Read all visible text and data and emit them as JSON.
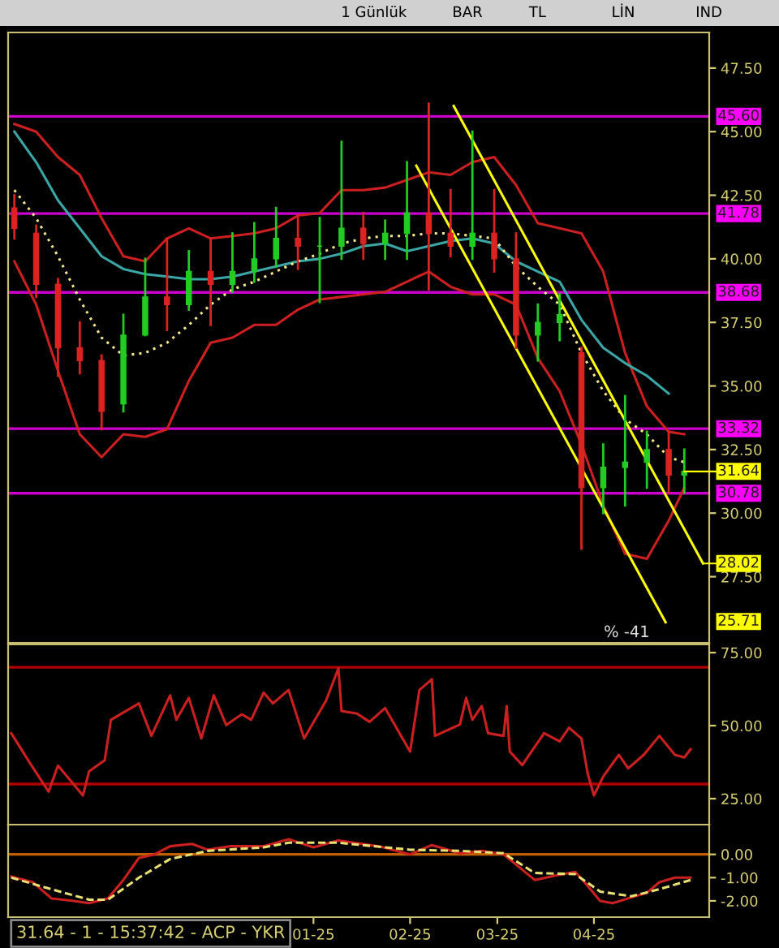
{
  "chart_data": [
    {
      "type": "candlestick",
      "x": [
        "2024-09-27",
        "2024-10-04",
        "2024-10-11",
        "2024-10-18",
        "2024-10-25",
        "2024-11-01",
        "2024-11-08",
        "2024-11-15",
        "2024-11-22",
        "2024-11-29",
        "2024-12-06",
        "2024-12-13",
        "2024-12-20",
        "2024-12-27",
        "2025-01-03",
        "2025-01-10",
        "2025-01-17",
        "2025-01-24",
        "2025-01-31",
        "2025-02-07",
        "2025-02-14",
        "2025-02-21",
        "2025-02-28",
        "2025-03-07",
        "2025-03-14",
        "2025-03-21",
        "2025-03-28",
        "2025-04-04",
        "2025-04-11",
        "2025-04-18",
        "2025-04-25",
        "2025-04-30"
      ],
      "ohlc": [
        [
          42,
          42.5,
          40.8,
          41.2
        ],
        [
          41,
          41.3,
          38.5,
          39
        ],
        [
          39,
          39.2,
          35.4,
          36.5
        ],
        [
          36.5,
          37.5,
          35.5,
          36
        ],
        [
          36,
          36.2,
          33.3,
          34
        ],
        [
          34.3,
          37.8,
          34,
          37
        ],
        [
          37,
          40,
          37,
          38.5
        ],
        [
          38.5,
          40.8,
          37.2,
          38.2
        ],
        [
          38.2,
          40.3,
          38,
          39.5
        ],
        [
          39.5,
          40.8,
          37.4,
          39
        ],
        [
          39,
          41,
          38.7,
          39.5
        ],
        [
          39.5,
          41.4,
          39.1,
          40
        ],
        [
          40,
          42,
          39.7,
          40.8
        ],
        [
          40.8,
          41.7,
          39.6,
          40.5
        ],
        [
          40.5,
          41.6,
          38.3,
          40.5
        ],
        [
          40.5,
          44.6,
          40,
          41.2
        ],
        [
          41.2,
          41.8,
          40,
          40.6
        ],
        [
          40.6,
          41.5,
          40,
          41
        ],
        [
          41,
          43.8,
          40,
          41.8
        ],
        [
          41.8,
          46.1,
          38.8,
          41
        ],
        [
          41,
          42.7,
          40.1,
          40.5
        ],
        [
          40.5,
          45,
          40,
          41
        ],
        [
          41,
          42.7,
          39.5,
          40
        ],
        [
          40,
          41,
          36.5,
          37
        ],
        [
          37,
          38.2,
          36,
          37.5
        ],
        [
          37.5,
          38.6,
          36.8,
          37.8
        ],
        [
          36.3,
          36.5,
          28.6,
          31
        ],
        [
          31,
          32.7,
          30,
          31.8
        ],
        [
          31.8,
          34.6,
          30.3,
          32
        ],
        [
          32,
          33.2,
          31,
          32.5
        ],
        [
          32.5,
          33.2,
          30.8,
          31.5
        ],
        [
          31.5,
          32.5,
          30.8,
          31.64
        ]
      ],
      "series": [
        {
          "type": "line",
          "color": "#cc2020",
          "x": [
            "2024-09-27",
            "2024-10-04",
            "2024-10-11",
            "2024-10-18",
            "2024-10-25",
            "2024-11-01",
            "2024-11-08",
            "2024-11-15",
            "2024-11-22",
            "2024-11-29",
            "2024-12-06",
            "2024-12-13",
            "2024-12-20",
            "2024-12-27",
            "2025-01-03",
            "2025-01-10",
            "2025-01-17",
            "2025-01-24",
            "2025-01-31",
            "2025-02-07",
            "2025-02-14",
            "2025-02-21",
            "2025-02-28",
            "2025-03-07",
            "2025-03-14",
            "2025-03-21",
            "2025-03-28",
            "2025-04-04",
            "2025-04-11",
            "2025-04-18",
            "2025-04-25",
            "2025-04-30"
          ],
          "values": [
            45.3,
            45,
            44,
            43.3,
            41.6,
            40.1,
            39.9,
            40.8,
            41.2,
            40.8,
            40.9,
            41,
            41.2,
            41.7,
            41.8,
            42.7,
            42.7,
            42.8,
            43.1,
            43.4,
            43.3,
            43.8,
            44,
            42.9,
            41.4,
            41.2,
            41,
            39.5,
            36.3,
            34.2,
            33.2,
            33.1
          ]
        },
        {
          "type": "line",
          "color": "#cc2020",
          "x": [
            "2024-09-27",
            "2024-10-04",
            "2024-10-11",
            "2024-10-18",
            "2024-10-25",
            "2024-11-01",
            "2024-11-08",
            "2024-11-15",
            "2024-11-22",
            "2024-11-29",
            "2024-12-06",
            "2024-12-13",
            "2024-12-20",
            "2024-12-27",
            "2025-01-03",
            "2025-01-10",
            "2025-01-17",
            "2025-01-24",
            "2025-01-31",
            "2025-02-07",
            "2025-02-14",
            "2025-02-21",
            "2025-02-28",
            "2025-03-07",
            "2025-03-14",
            "2025-03-21",
            "2025-03-28",
            "2025-04-04",
            "2025-04-11",
            "2025-04-18",
            "2025-04-25",
            "2025-04-30"
          ],
          "values": [
            39.9,
            38.2,
            35.6,
            33.1,
            32.2,
            33.1,
            33,
            33.3,
            35.2,
            36.7,
            36.9,
            37.4,
            37.4,
            38,
            38.4,
            38.5,
            38.6,
            38.7,
            39.1,
            39.5,
            38.9,
            38.6,
            38.6,
            38.2,
            36.1,
            34.8,
            32.7,
            30.3,
            28.4,
            28.2,
            29.7,
            31
          ]
        },
        {
          "type": "line",
          "color": "#3aa6a6",
          "x": [
            "2024-09-27",
            "2024-10-04",
            "2024-10-11",
            "2024-10-18",
            "2024-10-25",
            "2024-11-01",
            "2024-11-08",
            "2024-11-15",
            "2024-11-22",
            "2024-11-29",
            "2024-12-06",
            "2024-12-13",
            "2024-12-20",
            "2024-12-27",
            "2025-01-03",
            "2025-01-10",
            "2025-01-17",
            "2025-01-24",
            "2025-01-31",
            "2025-02-07",
            "2025-02-14",
            "2025-02-21",
            "2025-02-28",
            "2025-03-07",
            "2025-03-14",
            "2025-03-21",
            "2025-03-28",
            "2025-04-04",
            "2025-04-11",
            "2025-04-18",
            "2025-04-25"
          ],
          "values": [
            45,
            43.8,
            42.3,
            41.2,
            40.1,
            39.6,
            39.4,
            39.3,
            39.2,
            39.2,
            39.3,
            39.5,
            39.7,
            39.9,
            40,
            40.2,
            40.5,
            40.6,
            40.3,
            40.5,
            40.7,
            40.8,
            40.6,
            39.9,
            39.5,
            39.1,
            37.6,
            36.5,
            35.9,
            35.4,
            34.7
          ]
        },
        {
          "type": "line",
          "color": "#f5e98a",
          "line_style": "dotted",
          "x": [
            "2024-09-27",
            "2024-10-04",
            "2024-10-11",
            "2024-10-18",
            "2024-10-25",
            "2024-11-01",
            "2024-11-08",
            "2024-11-15",
            "2024-11-22",
            "2024-11-29",
            "2024-12-06",
            "2024-12-13",
            "2024-12-20",
            "2024-12-27",
            "2025-01-03",
            "2025-01-10",
            "2025-01-17",
            "2025-01-24",
            "2025-01-31",
            "2025-02-07",
            "2025-02-14",
            "2025-02-21",
            "2025-02-28",
            "2025-03-07",
            "2025-03-14",
            "2025-03-21",
            "2025-03-28",
            "2025-04-04",
            "2025-04-11",
            "2025-04-18",
            "2025-04-25",
            "2025-04-30"
          ],
          "values": [
            42.7,
            41.6,
            40.1,
            38.4,
            36.9,
            36.2,
            36.3,
            36.7,
            37.4,
            38.2,
            38.8,
            39.1,
            39.5,
            39.9,
            40.2,
            40.6,
            40.8,
            40.9,
            40.9,
            41,
            41,
            40.9,
            40.8,
            39.7,
            38.9,
            38.2,
            36.3,
            34.8,
            33.7,
            33.1,
            32.2,
            32
          ]
        },
        {
          "type": "line",
          "color": "#ffff00",
          "x": [
            "2025-02-03",
            "2025-04-24"
          ],
          "values": [
            43.66,
            25.71
          ]
        },
        {
          "type": "line",
          "color": "#ffff00",
          "x": [
            "2025-02-15",
            "2025-05-06"
          ],
          "values": [
            46.01,
            28.02
          ]
        }
      ],
      "xlim": [
        "2024-09-25",
        "2025-05-08"
      ],
      "ylim": [
        24.9,
        48.9
      ],
      "yticks": [
        {
          "value": 27.5,
          "label": "27.50"
        },
        {
          "value": 30,
          "label": "30.00"
        },
        {
          "value": 32.5,
          "label": "32.50"
        },
        {
          "value": 35,
          "label": "35.00"
        },
        {
          "value": 37.5,
          "label": "37.50"
        },
        {
          "value": 40,
          "label": "40.00"
        },
        {
          "value": 42.5,
          "label": "42.50"
        },
        {
          "value": 45,
          "label": "45.00"
        },
        {
          "value": 47.5,
          "label": "47.50"
        }
      ],
      "tick_labels": "y",
      "ref_lines": [
        {
          "axis": "y",
          "value": 45.6,
          "label": "45.60",
          "color": "#cc00cc"
        },
        {
          "axis": "y",
          "value": 41.78,
          "label": "41.78",
          "color": "#cc00cc"
        },
        {
          "axis": "y",
          "value": 38.68,
          "label": "38.68",
          "color": "#cc00cc"
        },
        {
          "axis": "y",
          "value": 33.32,
          "label": "33.32",
          "color": "#cc00cc"
        },
        {
          "axis": "y",
          "value": 30.78,
          "label": "30.78",
          "color": "#cc00cc"
        }
      ],
      "annotations": [
        {
          "text": "31.64",
          "x": "2025-04-30",
          "y": 31.64
        },
        {
          "text": "28.02",
          "x": "2025-05-06",
          "y": 28.02
        },
        "25.71",
        "% -41",
        "1 Günlük",
        "BAR",
        "TL",
        "LİN",
        "IND"
      ]
    },
    {
      "type": "line",
      "series": [
        {
          "color": "#cc2020",
          "x": [
            "2024-09-26",
            "2024-10-02",
            "2024-10-08",
            "2024-10-11",
            "2024-10-19",
            "2024-10-21",
            "2024-10-26",
            "2024-10-28",
            "2024-11-06",
            "2024-11-10",
            "2024-11-16",
            "2024-11-18",
            "2024-11-22",
            "2024-11-26",
            "2024-11-30",
            "2024-12-04",
            "2024-12-09",
            "2024-12-12",
            "2024-12-16",
            "2024-12-19",
            "2024-12-24",
            "2024-12-29",
            "2025-01-05",
            "2025-01-09",
            "2025-01-10",
            "2025-01-15",
            "2025-01-19",
            "2025-01-24",
            "2025-02-01",
            "2025-02-04",
            "2025-02-08",
            "2025-02-09",
            "2025-02-17",
            "2025-02-19",
            "2025-02-21",
            "2025-02-24",
            "2025-02-26",
            "2025-03-03",
            "2025-03-04",
            "2025-03-05",
            "2025-03-09",
            "2025-03-16",
            "2025-03-21",
            "2025-03-24",
            "2025-03-28",
            "2025-03-30",
            "2025-04-01",
            "2025-04-04",
            "2025-04-09",
            "2025-04-12",
            "2025-04-17",
            "2025-04-22",
            "2025-04-27",
            "2025-04-30",
            "2025-05-02"
          ],
          "values": [
            47.4,
            37.2,
            27.4,
            36.3,
            26.1,
            34.4,
            38.1,
            52,
            57.6,
            46.5,
            60.4,
            52,
            59.5,
            45.6,
            60.4,
            50.2,
            53.9,
            52,
            61.3,
            57.6,
            62.2,
            45.6,
            58.5,
            69.6,
            55,
            54.1,
            51.3,
            56,
            41.1,
            62.2,
            65.9,
            46.5,
            50.4,
            59.5,
            52,
            56.7,
            47.4,
            46.5,
            56.7,
            41.1,
            36.5,
            47.4,
            44.6,
            49.3,
            45.6,
            33.6,
            26.1,
            32.6,
            40,
            35.4,
            40,
            46.5,
            40,
            39.1,
            41.9
          ]
        }
      ],
      "xlim": [
        "2024-09-25",
        "2025-05-08"
      ],
      "ylim": [
        16.1,
        77.8
      ],
      "yticks": [
        {
          "value": 25,
          "label": "25.00"
        },
        {
          "value": 50,
          "label": "50.00"
        },
        {
          "value": 75,
          "label": "75.00"
        }
      ],
      "tick_labels": "y",
      "ref_lines": [
        {
          "axis": "y",
          "value": 70,
          "color": "#b00000"
        },
        {
          "axis": "y",
          "value": 30,
          "color": "#b00000"
        }
      ]
    },
    {
      "type": "line",
      "series": [
        {
          "color": "#cc2020",
          "x": [
            "2024-09-26",
            "2024-10-03",
            "2024-10-09",
            "2024-10-16",
            "2024-10-21",
            "2024-10-27",
            "2024-11-01",
            "2024-11-06",
            "2024-11-11",
            "2024-11-16",
            "2024-11-23",
            "2024-11-28",
            "2024-12-05",
            "2024-12-16",
            "2024-12-24",
            "2025-01-01",
            "2025-01-09",
            "2025-01-22",
            "2025-02-01",
            "2025-02-08",
            "2025-02-17",
            "2025-02-24",
            "2025-03-03",
            "2025-03-13",
            "2025-03-20",
            "2025-03-26",
            "2025-03-29",
            "2025-04-03",
            "2025-04-07",
            "2025-04-13",
            "2025-04-18",
            "2025-04-22",
            "2025-04-27",
            "2025-05-02"
          ],
          "values": [
            -0.95,
            -1.2,
            -1.9,
            -2.0,
            -2.1,
            -1.9,
            -1.1,
            -0.15,
            0,
            0.35,
            0.45,
            0.2,
            0.35,
            0.35,
            0.65,
            0.3,
            0.6,
            0.35,
            0,
            0.4,
            0.05,
            0.15,
            0,
            -1.1,
            -0.9,
            -0.75,
            -1.2,
            -2.0,
            -2.1,
            -1.85,
            -1.65,
            -1.2,
            -1.0,
            -1.0
          ]
        },
        {
          "color": "#e8e070",
          "line_style": "dashed",
          "x": [
            "2024-09-26",
            "2024-10-09",
            "2024-10-21",
            "2024-10-27",
            "2024-11-06",
            "2024-11-16",
            "2024-11-28",
            "2024-12-16",
            "2024-12-24",
            "2025-01-09",
            "2025-02-01",
            "2025-02-17",
            "2025-03-03",
            "2025-03-13",
            "2025-03-26",
            "2025-04-03",
            "2025-04-13",
            "2025-04-22",
            "2025-05-02"
          ],
          "values": [
            -1.0,
            -1.5,
            -1.95,
            -1.95,
            -1.0,
            -0.2,
            0.15,
            0.3,
            0.5,
            0.5,
            0.2,
            0.15,
            0.05,
            -0.8,
            -0.85,
            -1.6,
            -1.8,
            -1.5,
            -1.1
          ]
        }
      ],
      "xlim": [
        "2024-09-25",
        "2025-05-08"
      ],
      "xticks": [
        {
          "value": "2025-01-01",
          "label": "01-25"
        },
        {
          "value": "2025-02-01",
          "label": "02-25"
        },
        {
          "value": "2025-03-01",
          "label": "03-25"
        },
        {
          "value": "2025-04-01",
          "label": "04-25"
        }
      ],
      "ylim": [
        -2.7,
        1.28
      ],
      "yticks": [
        {
          "value": -2,
          "label": "-2.00"
        },
        {
          "value": -1,
          "label": "-1.00"
        },
        {
          "value": 0,
          "label": "0.00"
        }
      ],
      "ref_lines": [
        {
          "axis": "y",
          "value": 0,
          "color": "#c06000"
        }
      ],
      "annotations": [
        "31.64 - 1 - 15:37:42 - ACP - YKR"
      ]
    }
  ]
}
